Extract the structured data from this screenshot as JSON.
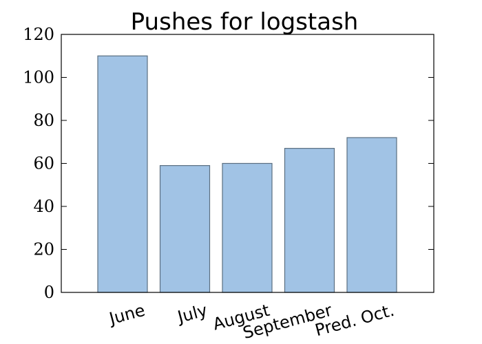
{
  "chart_data": {
    "type": "bar",
    "title": "Pushes for logstash",
    "categories": [
      "June",
      "July",
      "August",
      "September",
      "Pred. Oct."
    ],
    "values": [
      110,
      59,
      60,
      67,
      72
    ],
    "xlabel": "",
    "ylabel": "",
    "ylim": [
      0,
      120
    ],
    "yticks": [
      "0",
      "20",
      "40",
      "60",
      "80",
      "100",
      "120"
    ],
    "grid": false,
    "legend": "none",
    "bar_color": "#a1c3e5",
    "bar_edge_color": "#5a6e80"
  }
}
